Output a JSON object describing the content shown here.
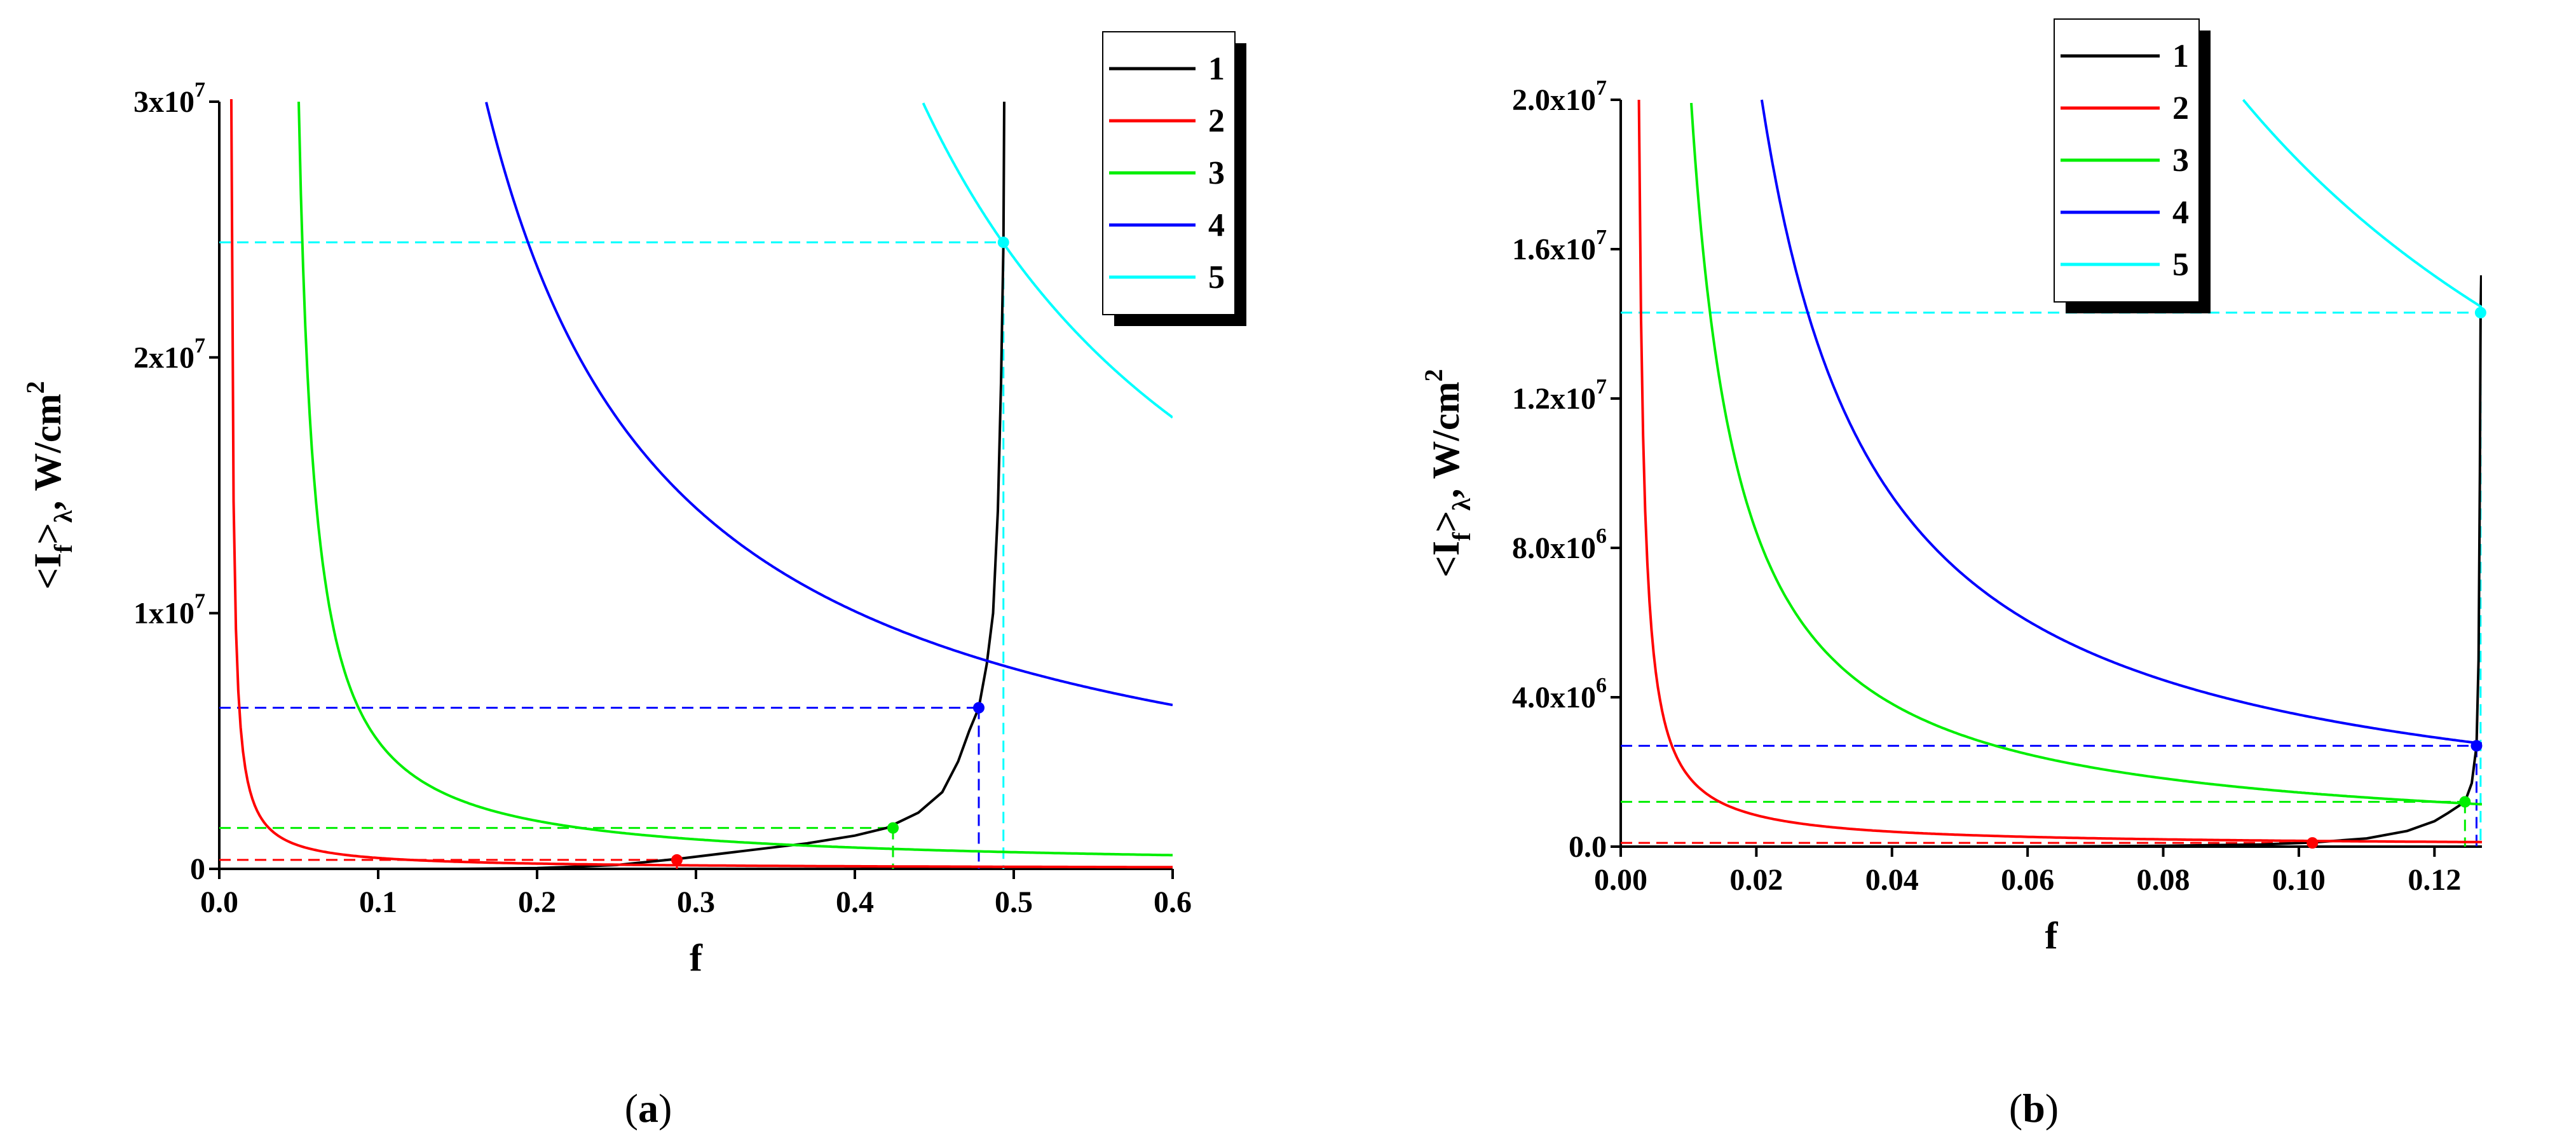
{
  "chart_data": [
    {
      "type": "line",
      "panel_label": "a",
      "xlabel": "f",
      "ylabel_parts": {
        "a": "<I",
        "sub": "f",
        "b": ">",
        "sub2": "λ",
        "c": ", W/cm",
        "sup": "2"
      },
      "xlim": [
        0,
        0.6
      ],
      "ylim": [
        0,
        30000000
      ],
      "x_ticks": [
        {
          "value": 0.0,
          "label": "0.0"
        },
        {
          "value": 0.1,
          "label": "0.1"
        },
        {
          "value": 0.2,
          "label": "0.2"
        },
        {
          "value": 0.3,
          "label": "0.3"
        },
        {
          "value": 0.4,
          "label": "0.4"
        },
        {
          "value": 0.5,
          "label": "0.5"
        },
        {
          "value": 0.6,
          "label": "0.6"
        }
      ],
      "y_ticks": [
        {
          "value": 0,
          "label": "0",
          "sup": ""
        },
        {
          "value": 10000000,
          "label": "1x10",
          "sup": "7"
        },
        {
          "value": 20000000,
          "label": "2x10",
          "sup": "7"
        },
        {
          "value": 30000000,
          "label": "3x10",
          "sup": "7"
        }
      ],
      "legend": {
        "placement": "top-right",
        "entries": [
          "1",
          "2",
          "3",
          "4",
          "5"
        ]
      },
      "series": [
        {
          "name": "1",
          "color": "#000000",
          "kind": "threshold",
          "asymptote_f": 0.4935,
          "points": [
            [
              0.15,
              0
            ],
            [
              0.2,
              30000
            ],
            [
              0.25,
              150000
            ],
            [
              0.29,
              400000
            ],
            [
              0.33,
              700000
            ],
            [
              0.37,
              1000000
            ],
            [
              0.4,
              1300000
            ],
            [
              0.42,
              1600000
            ],
            [
              0.44,
              2200000
            ],
            [
              0.455,
              3000000
            ],
            [
              0.465,
              4200000
            ],
            [
              0.472,
              5400000
            ],
            [
              0.478,
              6300000
            ],
            [
              0.483,
              8000000
            ],
            [
              0.487,
              10000000
            ],
            [
              0.49,
              14000000
            ],
            [
              0.492,
              19000000
            ],
            [
              0.4935,
              24500000
            ],
            [
              0.494,
              30000000
            ]
          ]
        },
        {
          "name": "2",
          "color": "#ff0000",
          "kind": "hyperbola",
          "c": 0.04,
          "f0": 0.0062,
          "fmin": 0.0075,
          "fmax": 0.6
        },
        {
          "name": "3",
          "color": "#00ee00",
          "kind": "hyperbola",
          "c": 0.3,
          "f0": 0.04,
          "fmin": 0.05,
          "fmax": 0.6
        },
        {
          "name": "4",
          "color": "#0000ff",
          "kind": "hyperbola",
          "c": 3.52,
          "f0": 0.0506,
          "fmin": 0.168,
          "fmax": 0.6
        },
        {
          "name": "5",
          "color": "#00ffff",
          "kind": "hyperbola",
          "c": 6.75,
          "f0": 0.2176,
          "fmin": 0.443,
          "fmax": 0.6
        }
      ],
      "markers": [
        {
          "series": "2",
          "x": 0.288,
          "y": 350000
        },
        {
          "series": "3",
          "x": 0.424,
          "y": 1600000
        },
        {
          "series": "4",
          "x": 0.478,
          "y": 6300000
        },
        {
          "series": "5",
          "x": 0.4935,
          "y": 24500000
        }
      ]
    },
    {
      "type": "line",
      "panel_label": "b",
      "xlabel": "f",
      "ylabel_parts": {
        "a": "<I",
        "sub": "f",
        "b": ">",
        "sub2": "λ",
        "c": ", W/cm",
        "sup": "2"
      },
      "xlim": [
        0,
        0.127
      ],
      "ylim": [
        0,
        20000000
      ],
      "x_ticks": [
        {
          "value": 0.0,
          "label": "0.00"
        },
        {
          "value": 0.02,
          "label": "0.02"
        },
        {
          "value": 0.04,
          "label": "0.04"
        },
        {
          "value": 0.06,
          "label": "0.06"
        },
        {
          "value": 0.08,
          "label": "0.08"
        },
        {
          "value": 0.1,
          "label": "0.10"
        },
        {
          "value": 0.12,
          "label": "0.12"
        }
      ],
      "y_ticks": [
        {
          "value": 0,
          "label": "0.0",
          "sup": ""
        },
        {
          "value": 4000000,
          "label": "4.0x10",
          "sup": "6"
        },
        {
          "value": 8000000,
          "label": "8.0x10",
          "sup": "6"
        },
        {
          "value": 12000000,
          "label": "1.2x10",
          "sup": "7"
        },
        {
          "value": 16000000,
          "label": "1.6x10",
          "sup": "7"
        },
        {
          "value": 20000000,
          "label": "2.0x10",
          "sup": "7"
        }
      ],
      "legend": {
        "placement": "top-right",
        "entries": [
          "1",
          "2",
          "3",
          "4",
          "5"
        ]
      },
      "series": [
        {
          "name": "1",
          "color": "#000000",
          "kind": "threshold",
          "asymptote_f": 0.1268,
          "points": [
            [
              0.06,
              0
            ],
            [
              0.08,
              20000
            ],
            [
              0.095,
              60000
            ],
            [
              0.102,
              110000
            ],
            [
              0.11,
              220000
            ],
            [
              0.116,
              420000
            ],
            [
              0.12,
              680000
            ],
            [
              0.122,
              900000
            ],
            [
              0.1245,
              1200000
            ],
            [
              0.1255,
              1700000
            ],
            [
              0.1262,
              2700000
            ],
            [
              0.1265,
              5000000
            ],
            [
              0.1267,
              10000000
            ],
            [
              0.1268,
              14300000
            ],
            [
              0.1269,
              15300000
            ]
          ]
        },
        {
          "name": "2",
          "color": "#ff0000",
          "kind": "hyperbola",
          "c": 0.0152,
          "f0": 0.00192,
          "fmin": 0.00268,
          "fmax": 0.127
        },
        {
          "name": "3",
          "color": "#00ee00",
          "kind": "hyperbola",
          "c": 0.1402,
          "f0": 0.00336,
          "fmin": 0.0104,
          "fmax": 0.127
        },
        {
          "name": "4",
          "color": "#0000ff",
          "kind": "hyperbola",
          "c": 0.34,
          "f0": 0.0038,
          "fmin": 0.0208,
          "fmax": 0.127
        },
        {
          "name": "5",
          "color": "#00ffff",
          "kind": "hyperbola",
          "c": 1.83,
          "f0": 0.0003,
          "fmin": 0.0918,
          "fmax": 0.127
        }
      ],
      "markers": [
        {
          "series": "2",
          "x": 0.102,
          "y": 100000
        },
        {
          "series": "3",
          "x": 0.1245,
          "y": 1200000
        },
        {
          "series": "4",
          "x": 0.1262,
          "y": 2700000
        },
        {
          "series": "5",
          "x": 0.1268,
          "y": 14300000
        }
      ]
    }
  ]
}
